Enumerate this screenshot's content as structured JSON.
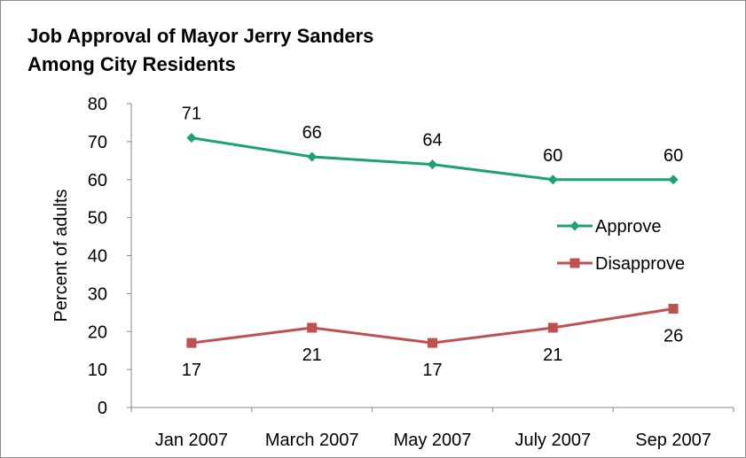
{
  "chart_data": {
    "type": "line",
    "title": [
      "Job Approval of Mayor Jerry Sanders",
      "Among City Residents"
    ],
    "ylabel": "Percent of adults",
    "xlabel": "",
    "categories": [
      "Jan 2007",
      "March 2007",
      "May 2007",
      "July 2007",
      "Sep 2007"
    ],
    "ylim": [
      0,
      80
    ],
    "yticks": [
      "0",
      "10",
      "20",
      "30",
      "40",
      "50",
      "60",
      "70",
      "80"
    ],
    "grid": false,
    "legend_position": "right",
    "series": [
      {
        "name": "Approve",
        "values": [
          71,
          66,
          64,
          60,
          60
        ],
        "labels": [
          "71",
          "66",
          "64",
          "60",
          "60"
        ],
        "color": "#1aa36a",
        "marker": "diamond",
        "label_position": "above"
      },
      {
        "name": "Disapprove",
        "values": [
          17,
          21,
          17,
          21,
          26
        ],
        "labels": [
          "17",
          "21",
          "17",
          "21",
          "26"
        ],
        "color": "#c0504d",
        "marker": "square",
        "label_position": "below"
      }
    ]
  }
}
